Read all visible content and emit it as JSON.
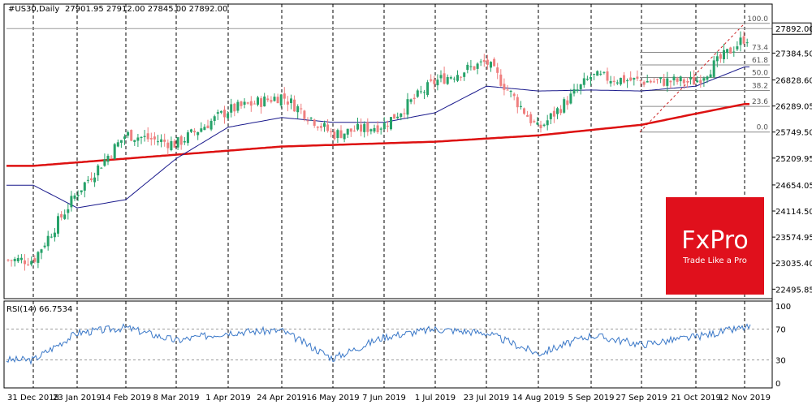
{
  "header": {
    "symbol": "#US30,Daily",
    "ohlc": "27901.95 27912.00 27845.00 27892.00"
  },
  "current_price_label": "27892.00",
  "rsi_label": "RSI(14) 66.7534",
  "logo": {
    "brand": "FxPro",
    "tagline": "Trade Like a Pro",
    "color": "#e0101c"
  },
  "colors": {
    "bull": "#26a269",
    "bear": "#ef7f7f",
    "ma_slow": "#dd1111",
    "ma_fast": "#1a1a8c",
    "rsi": "#3a78c8",
    "fib": "#8a8a8a"
  },
  "chart_data": [
    {
      "type": "candlestick",
      "y_axis_ticks": [
        "27384.50",
        "26828.60",
        "26289.05",
        "25749.50",
        "25209.95",
        "24654.05",
        "24114.50",
        "23574.95",
        "23035.40",
        "22495.85"
      ],
      "current_price": 27892.0,
      "x_axis_ticks": [
        "31 Dec 2018",
        "23 Jan 2019",
        "14 Feb 2019",
        "8 Mar 2019",
        "1 Apr 2019",
        "24 Apr 2019",
        "16 May 2019",
        "7 Jun 2019",
        "1 Jul 2019",
        "23 Jul 2019",
        "14 Aug 2019",
        "5 Sep 2019",
        "27 Sep 2019",
        "21 Oct 2019",
        "12 Nov 2019"
      ],
      "close_anchors": [
        [
          "31 Dec 2018",
          23100
        ],
        [
          "23 Jan 2019",
          24500
        ],
        [
          "14 Feb 2019",
          25700
        ],
        [
          "8 Mar 2019",
          25500
        ],
        [
          "1 Apr 2019",
          26200
        ],
        [
          "24 Apr 2019",
          26500
        ],
        [
          "16 May 2019",
          25700
        ],
        [
          "7 Jun 2019",
          25900
        ],
        [
          "1 Jul 2019",
          26800
        ],
        [
          "23 Jul 2019",
          27200
        ],
        [
          "14 Aug 2019",
          25800
        ],
        [
          "5 Sep 2019",
          26900
        ],
        [
          "27 Sep 2019",
          26800
        ],
        [
          "21 Oct 2019",
          26800
        ],
        [
          "12 Nov 2019",
          27700
        ]
      ],
      "moving_averages": [
        {
          "color": "#dd1111",
          "anchors": [
            [
              "31 Dec 2018",
              25050
            ],
            [
              "14 Feb 2019",
              25200
            ],
            [
              "24 Apr 2019",
              25450
            ],
            [
              "1 Jul 2019",
              25550
            ],
            [
              "14 Aug 2019",
              25680
            ],
            [
              "27 Sep 2019",
              25900
            ],
            [
              "21 Oct 2019",
              26130
            ],
            [
              "12 Nov 2019",
              26330
            ]
          ]
        },
        {
          "color": "#1a1a8c",
          "anchors": [
            [
              "31 Dec 2018",
              24650
            ],
            [
              "23 Jan 2019",
              24180
            ],
            [
              "14 Feb 2019",
              24350
            ],
            [
              "8 Mar 2019",
              25200
            ],
            [
              "1 Apr 2019",
              25850
            ],
            [
              "24 Apr 2019",
              26050
            ],
            [
              "16 May 2019",
              25950
            ],
            [
              "7 Jun 2019",
              25950
            ],
            [
              "1 Jul 2019",
              26150
            ],
            [
              "23 Jul 2019",
              26700
            ],
            [
              "14 Aug 2019",
              26600
            ],
            [
              "5 Sep 2019",
              26620
            ],
            [
              "27 Sep 2019",
              26600
            ],
            [
              "21 Oct 2019",
              26700
            ],
            [
              "12 Nov 2019",
              27100
            ]
          ]
        }
      ],
      "fibonacci": {
        "high": 28000,
        "low": 25750,
        "levels": [
          {
            "label": "100.0",
            "value": 28000
          },
          {
            "label": "73.4",
            "value": 27400
          },
          {
            "label": "61.8",
            "value": 27140
          },
          {
            "label": "50.0",
            "value": 26880
          },
          {
            "label": "38.2",
            "value": 26610
          },
          {
            "label": "23.6",
            "value": 26280
          },
          {
            "label": "0.0",
            "value": 25750
          }
        ]
      }
    },
    {
      "type": "line",
      "indicator": "RSI(14)",
      "last_value": 66.7534,
      "y_ticks": [
        "100",
        "70",
        "30",
        "0"
      ],
      "levels": [
        70,
        30
      ],
      "anchors": [
        [
          "31 Dec 2018",
          30
        ],
        [
          "23 Jan 2019",
          65
        ],
        [
          "14 Feb 2019",
          72
        ],
        [
          "8 Mar 2019",
          55
        ],
        [
          "1 Apr 2019",
          66
        ],
        [
          "24 Apr 2019",
          68
        ],
        [
          "16 May 2019",
          32
        ],
        [
          "7 Jun 2019",
          60
        ],
        [
          "1 Jul 2019",
          70
        ],
        [
          "23 Jul 2019",
          65
        ],
        [
          "14 Aug 2019",
          38
        ],
        [
          "5 Sep 2019",
          62
        ],
        [
          "27 Sep 2019",
          50
        ],
        [
          "21 Oct 2019",
          60
        ],
        [
          "12 Nov 2019",
          72
        ]
      ]
    }
  ]
}
